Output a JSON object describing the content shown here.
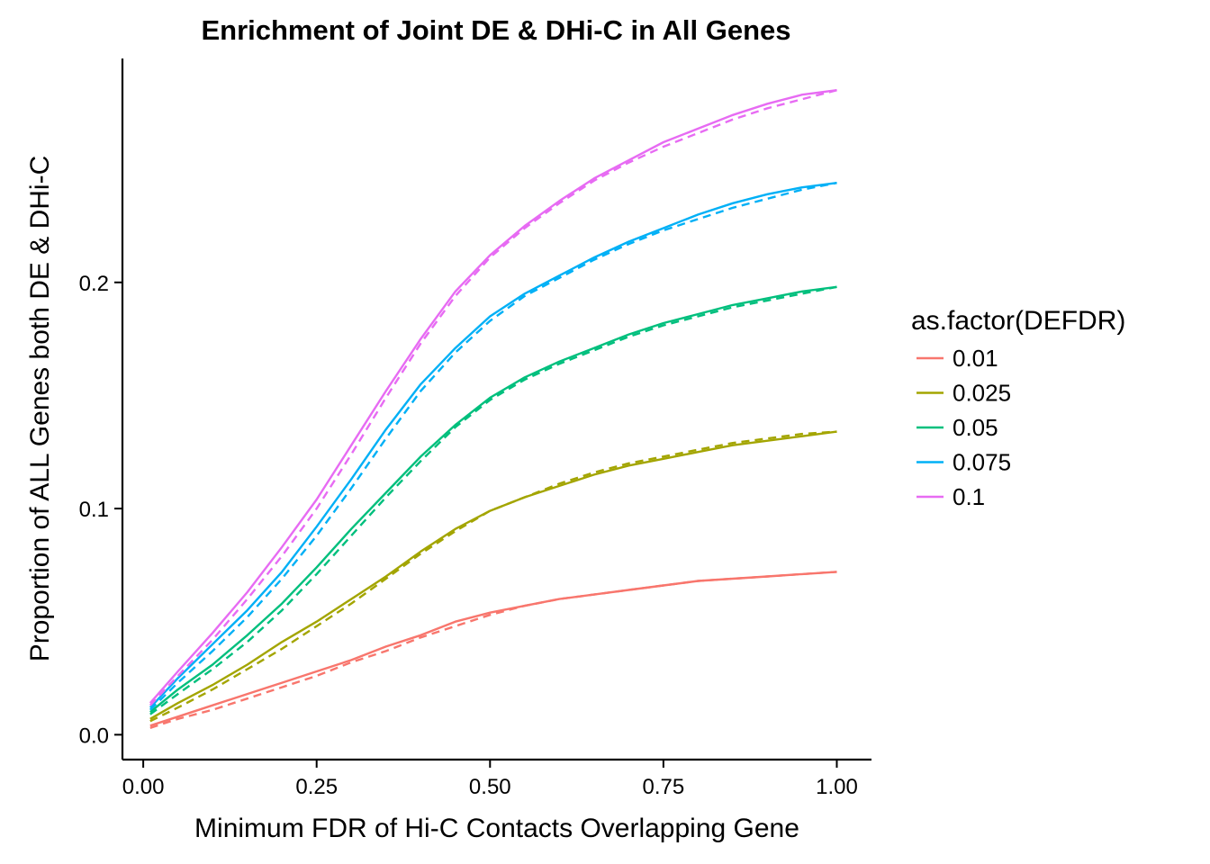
{
  "chart_data": {
    "type": "line",
    "title": "Enrichment of Joint DE & DHi-C in All Genes",
    "xlabel": "Minimum FDR of Hi-C Contacts Overlapping Gene",
    "ylabel": "Proportion of ALL Genes both DE & DHi-C",
    "xlim": [
      -0.03,
      1.05
    ],
    "ylim": [
      -0.011,
      0.299
    ],
    "x_ticks": [
      0,
      0.25,
      0.5,
      0.75,
      1
    ],
    "x_tick_labels": [
      "0.00",
      "0.25",
      "0.50",
      "0.75",
      "1.00"
    ],
    "y_ticks": [
      0,
      0.1,
      0.2
    ],
    "y_tick_labels": [
      "0.0",
      "0.1",
      "0.2"
    ],
    "grid": false,
    "legend": {
      "title": "as.factor(DEFDR)",
      "position": "right",
      "entries": [
        "0.01",
        "0.025",
        "0.05",
        "0.075",
        "0.1"
      ]
    },
    "x": [
      0.01,
      0.05,
      0.1,
      0.15,
      0.2,
      0.25,
      0.3,
      0.35,
      0.4,
      0.45,
      0.5,
      0.55,
      0.6,
      0.65,
      0.7,
      0.75,
      0.8,
      0.85,
      0.9,
      0.95,
      1.0
    ],
    "series": [
      {
        "name": "0.01",
        "color": "#F8766D",
        "values": [
          0.004,
          0.008,
          0.013,
          0.018,
          0.023,
          0.028,
          0.033,
          0.039,
          0.044,
          0.05,
          0.054,
          0.057,
          0.06,
          0.062,
          0.064,
          0.066,
          0.068,
          0.069,
          0.07,
          0.071,
          0.072
        ],
        "dashed_values": [
          0.003,
          0.007,
          0.011,
          0.016,
          0.021,
          0.026,
          0.032,
          0.037,
          0.043,
          0.048,
          0.053,
          0.057,
          0.06,
          0.062,
          0.064,
          0.066,
          0.068,
          0.069,
          0.07,
          0.071,
          0.072
        ]
      },
      {
        "name": "0.025",
        "color": "#A3A500",
        "values": [
          0.007,
          0.014,
          0.022,
          0.031,
          0.041,
          0.05,
          0.06,
          0.07,
          0.081,
          0.091,
          0.099,
          0.105,
          0.11,
          0.115,
          0.119,
          0.122,
          0.125,
          0.128,
          0.13,
          0.132,
          0.134
        ],
        "dashed_values": [
          0.006,
          0.012,
          0.02,
          0.029,
          0.038,
          0.048,
          0.058,
          0.069,
          0.08,
          0.09,
          0.099,
          0.105,
          0.111,
          0.116,
          0.12,
          0.123,
          0.126,
          0.129,
          0.131,
          0.133,
          0.134
        ]
      },
      {
        "name": "0.05",
        "color": "#00BF7D",
        "values": [
          0.01,
          0.02,
          0.031,
          0.044,
          0.058,
          0.074,
          0.091,
          0.107,
          0.123,
          0.137,
          0.149,
          0.158,
          0.165,
          0.171,
          0.177,
          0.182,
          0.186,
          0.19,
          0.193,
          0.196,
          0.198
        ],
        "dashed_values": [
          0.009,
          0.018,
          0.029,
          0.041,
          0.055,
          0.071,
          0.088,
          0.105,
          0.121,
          0.136,
          0.148,
          0.157,
          0.164,
          0.17,
          0.176,
          0.181,
          0.185,
          0.189,
          0.192,
          0.195,
          0.198
        ]
      },
      {
        "name": "0.075",
        "color": "#00B0F6",
        "values": [
          0.012,
          0.025,
          0.04,
          0.055,
          0.072,
          0.092,
          0.113,
          0.135,
          0.155,
          0.171,
          0.185,
          0.195,
          0.203,
          0.211,
          0.218,
          0.224,
          0.23,
          0.235,
          0.239,
          0.242,
          0.244
        ],
        "dashed_values": [
          0.011,
          0.023,
          0.037,
          0.052,
          0.069,
          0.088,
          0.109,
          0.131,
          0.152,
          0.169,
          0.183,
          0.194,
          0.202,
          0.21,
          0.217,
          0.223,
          0.228,
          0.233,
          0.237,
          0.241,
          0.244
        ]
      },
      {
        "name": "0.1",
        "color": "#E76BF3",
        "values": [
          0.014,
          0.028,
          0.045,
          0.063,
          0.083,
          0.104,
          0.128,
          0.152,
          0.175,
          0.196,
          0.212,
          0.225,
          0.236,
          0.246,
          0.254,
          0.262,
          0.268,
          0.274,
          0.279,
          0.283,
          0.285
        ],
        "dashed_values": [
          0.013,
          0.026,
          0.042,
          0.06,
          0.079,
          0.1,
          0.124,
          0.149,
          0.173,
          0.194,
          0.211,
          0.224,
          0.235,
          0.245,
          0.253,
          0.26,
          0.266,
          0.272,
          0.277,
          0.281,
          0.285
        ]
      }
    ]
  }
}
